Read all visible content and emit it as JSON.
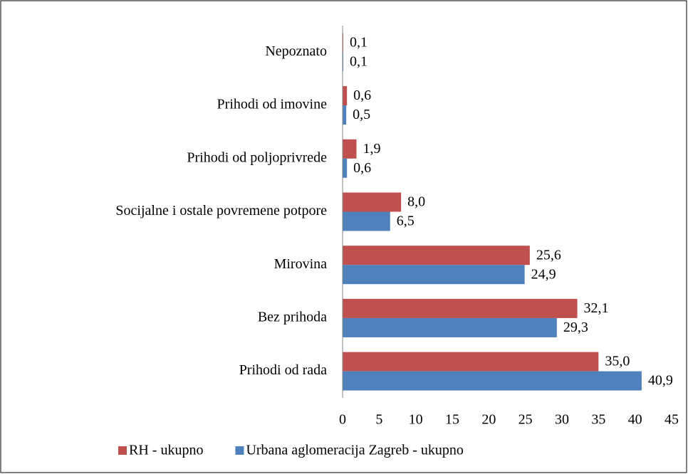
{
  "chart_data": {
    "type": "bar",
    "orientation": "horizontal",
    "categories": [
      "Prihodi od rada",
      "Bez prihoda",
      "Mirovina",
      "Socijalne i ostale povremene potpore",
      "Prihodi od poljoprivrede",
      "Prihodi od imovine",
      "Nepoznato"
    ],
    "series": [
      {
        "name": "RH - ukupno",
        "color": "#c0504d",
        "values": [
          35.0,
          32.1,
          25.6,
          8.0,
          1.9,
          0.6,
          0.1
        ],
        "value_labels": [
          "35,0",
          "32,1",
          "25,6",
          "8,0",
          "1,9",
          "0,6",
          "0,1"
        ]
      },
      {
        "name": "Urbana aglomeracija Zagreb - ukupno",
        "color": "#4f81bd",
        "values": [
          40.9,
          29.3,
          24.9,
          6.5,
          0.6,
          0.5,
          0.1
        ],
        "value_labels": [
          "40,9",
          "29,3",
          "24,9",
          "6,5",
          "0,6",
          "0,5",
          "0,1"
        ]
      }
    ],
    "xlim": [
      0,
      45
    ],
    "xticks": [
      0,
      5,
      10,
      15,
      20,
      25,
      30,
      35,
      40,
      45
    ],
    "grid": false,
    "legend": "bottom"
  }
}
